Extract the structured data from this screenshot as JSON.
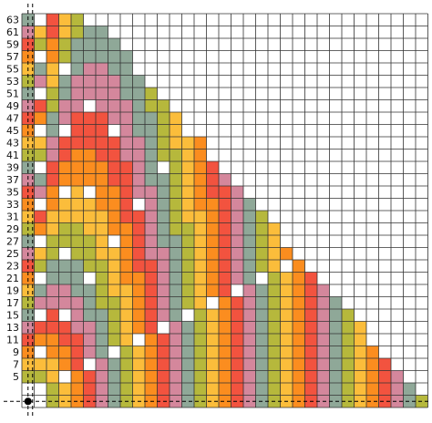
{
  "row_labels": [
    "63",
    "61",
    "59",
    "57",
    "55",
    "53",
    "51",
    "49",
    "47",
    "45",
    "43",
    "41",
    "39",
    "37",
    "35",
    "33",
    "31",
    "29",
    "27",
    "25",
    "23",
    "21",
    "19",
    "17",
    "15",
    "13",
    "11",
    "9",
    "7",
    "5"
  ]
}
